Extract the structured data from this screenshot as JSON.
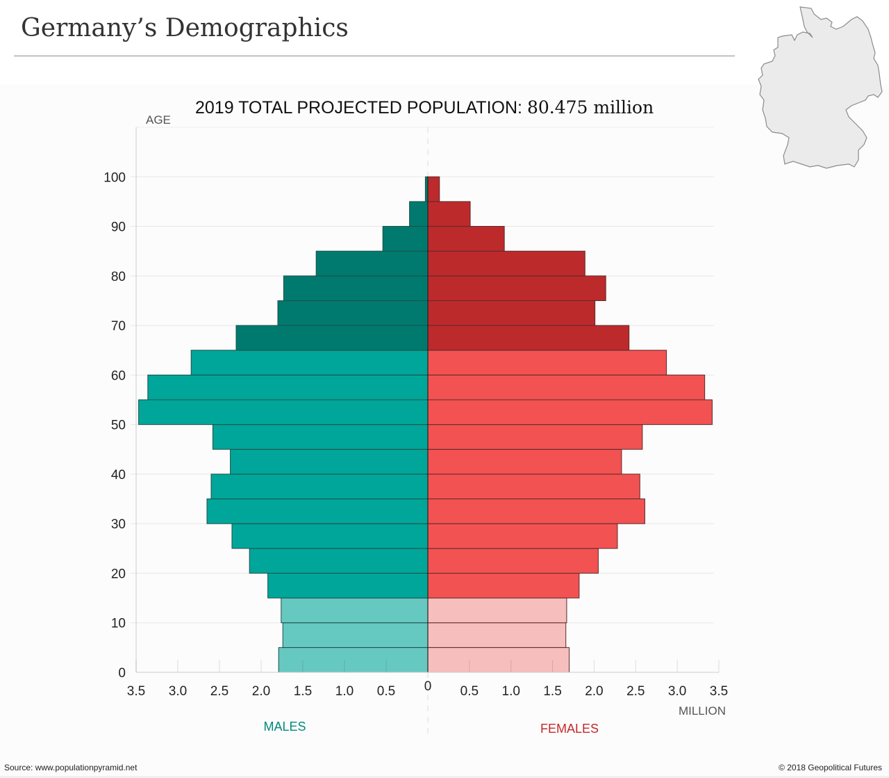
{
  "header": {
    "title": "Germany’s Demographics",
    "map_icon": "germany-map-outline"
  },
  "subtitle": {
    "label": "2019 TOTAL PROJECTED POPULATION:",
    "value": "80.475 million"
  },
  "footer": {
    "source": "Source: www.populationpyramid.net",
    "copyright": "© 2018 Geopolitical Futures"
  },
  "colors": {
    "male_elderly": "#007A6E",
    "male_working": "#00A699",
    "male_young": "#66C9C1",
    "female_elderly": "#BD2A2C",
    "female_working": "#F25252",
    "female_young": "#F7BEBE",
    "males_label": "#00897B",
    "females_label": "#C62828"
  },
  "chart_data": {
    "type": "bar",
    "subtype": "population-pyramid",
    "title": "2019 TOTAL PROJECTED POPULATION: 80.475 million",
    "ylabel": "AGE",
    "xlabel": "MILLION",
    "y_ticks": [
      "0",
      "10",
      "20",
      "30",
      "40",
      "50",
      "60",
      "70",
      "80",
      "90",
      "100"
    ],
    "x_ticks_left": [
      "3.5",
      "3.0",
      "2.5",
      "2.0",
      "1.5",
      "1.0",
      "0.5"
    ],
    "x_ticks_right": [
      "0.5",
      "1.0",
      "1.5",
      "2.0",
      "2.5",
      "3.0",
      "3.5"
    ],
    "x_zero_label": "0",
    "xlim": [
      0,
      3.5
    ],
    "ylim": [
      0,
      110
    ],
    "grid": true,
    "categories": [
      "0-4",
      "5-9",
      "10-14",
      "15-19",
      "20-24",
      "25-29",
      "30-34",
      "35-39",
      "40-44",
      "45-49",
      "50-54",
      "55-59",
      "60-64",
      "65-69",
      "70-74",
      "75-79",
      "80-84",
      "85-89",
      "90-94",
      "95-99",
      "100+"
    ],
    "age_group_class": [
      "young",
      "young",
      "young",
      "working",
      "working",
      "working",
      "working",
      "working",
      "working",
      "working",
      "working",
      "working",
      "working",
      "elderly",
      "elderly",
      "elderly",
      "elderly",
      "elderly",
      "elderly",
      "elderly",
      "elderly"
    ],
    "series": [
      {
        "name": "MALES",
        "side": "left",
        "values": [
          1.79,
          1.74,
          1.76,
          1.92,
          2.14,
          2.35,
          2.65,
          2.6,
          2.37,
          2.58,
          3.47,
          3.36,
          2.84,
          2.3,
          1.8,
          1.73,
          1.34,
          0.54,
          0.22,
          0.03,
          0.0
        ]
      },
      {
        "name": "FEMALES",
        "side": "right",
        "values": [
          1.7,
          1.66,
          1.67,
          1.82,
          2.05,
          2.28,
          2.61,
          2.55,
          2.33,
          2.58,
          3.42,
          3.33,
          2.87,
          2.42,
          2.01,
          2.14,
          1.89,
          0.92,
          0.51,
          0.14,
          0.0
        ]
      }
    ],
    "legend": [
      "MALES",
      "FEMALES"
    ],
    "legend_position": "bottom"
  }
}
